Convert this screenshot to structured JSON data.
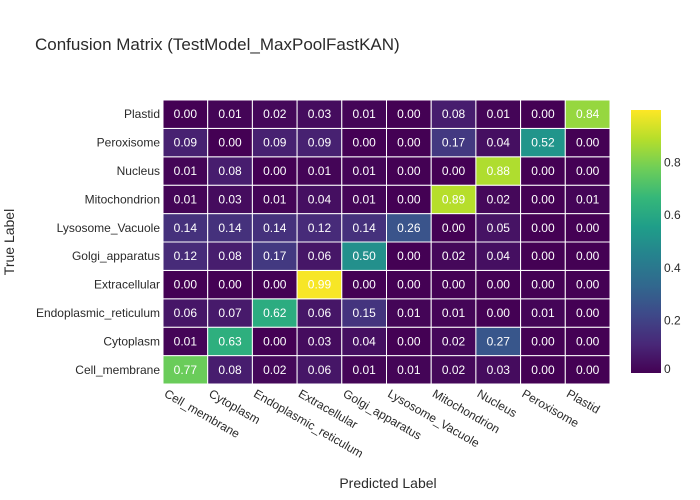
{
  "chart_data": {
    "type": "heatmap",
    "title": "Confusion Matrix (TestModel_MaxPoolFastKAN)",
    "xlabel": "Predicted Label",
    "ylabel": "True Label",
    "x_categories": [
      "Cell_membrane",
      "Cytoplasm",
      "Endoplasmic_reticulum",
      "Extracellular",
      "Golgi_apparatus",
      "Lysosome_Vacuole",
      "Mitochondrion",
      "Nucleus",
      "Peroxisome",
      "Plastid"
    ],
    "y_categories": [
      "Cell_membrane",
      "Cytoplasm",
      "Endoplasmic_reticulum",
      "Extracellular",
      "Golgi_apparatus",
      "Lysosome_Vacuole",
      "Mitochondrion",
      "Nucleus",
      "Peroxisome",
      "Plastid"
    ],
    "z": [
      [
        "0.77",
        "0.08",
        "0.02",
        "0.06",
        "0.01",
        "0.01",
        "0.02",
        "0.03",
        "0.00",
        "0.00"
      ],
      [
        "0.01",
        "0.63",
        "0.00",
        "0.03",
        "0.04",
        "0.00",
        "0.02",
        "0.27",
        "0.00",
        "0.00"
      ],
      [
        "0.06",
        "0.07",
        "0.62",
        "0.06",
        "0.15",
        "0.01",
        "0.01",
        "0.00",
        "0.01",
        "0.00"
      ],
      [
        "0.00",
        "0.00",
        "0.00",
        "0.99",
        "0.00",
        "0.00",
        "0.00",
        "0.00",
        "0.00",
        "0.00"
      ],
      [
        "0.12",
        "0.08",
        "0.17",
        "0.06",
        "0.50",
        "0.00",
        "0.02",
        "0.04",
        "0.00",
        "0.00"
      ],
      [
        "0.14",
        "0.14",
        "0.14",
        "0.12",
        "0.14",
        "0.26",
        "0.00",
        "0.05",
        "0.00",
        "0.00"
      ],
      [
        "0.01",
        "0.03",
        "0.01",
        "0.04",
        "0.01",
        "0.00",
        "0.89",
        "0.02",
        "0.00",
        "0.01"
      ],
      [
        "0.01",
        "0.08",
        "0.00",
        "0.01",
        "0.01",
        "0.00",
        "0.00",
        "0.88",
        "0.00",
        "0.00"
      ],
      [
        "0.09",
        "0.00",
        "0.09",
        "0.09",
        "0.00",
        "0.00",
        "0.17",
        "0.04",
        "0.52",
        "0.00"
      ],
      [
        "0.00",
        "0.01",
        "0.02",
        "0.03",
        "0.01",
        "0.00",
        "0.08",
        "0.01",
        "0.00",
        "0.84"
      ]
    ],
    "colorscale": "viridis",
    "zmin": 0,
    "zmax": 1,
    "colorbar_ticks": [
      "0",
      "0.2",
      "0.4",
      "0.6",
      "0.8"
    ],
    "grid": false
  }
}
